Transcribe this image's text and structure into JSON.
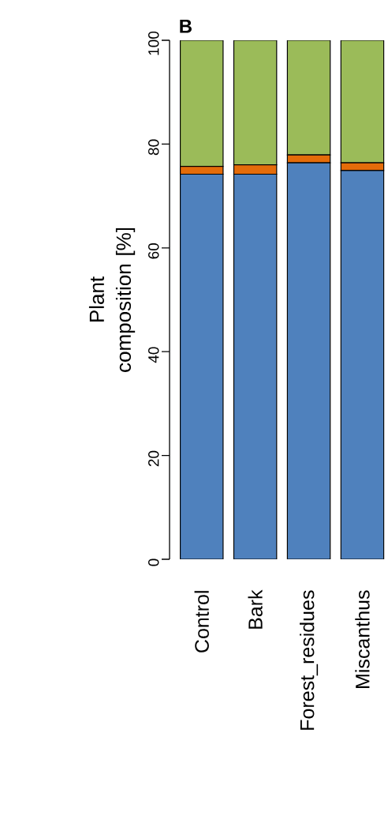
{
  "chart_data": {
    "type": "bar",
    "title": "B",
    "ylabel": "Plant composition [%]",
    "categories": [
      "Control",
      "Bark",
      "Forest_residues",
      "Miscanthus"
    ],
    "stacked": true,
    "series": [
      {
        "color": "#4f81bd",
        "values": [
          74.2,
          74.2,
          76.4,
          74.9
        ]
      },
      {
        "color": "#e46c0a",
        "values": [
          1.5,
          1.8,
          1.5,
          1.5
        ]
      },
      {
        "color": "#9bbb59",
        "values": [
          24.3,
          24.0,
          22.1,
          23.6
        ]
      }
    ],
    "ylim": [
      0,
      100
    ],
    "yticks": [
      0,
      20,
      40,
      60,
      80,
      100
    ]
  }
}
